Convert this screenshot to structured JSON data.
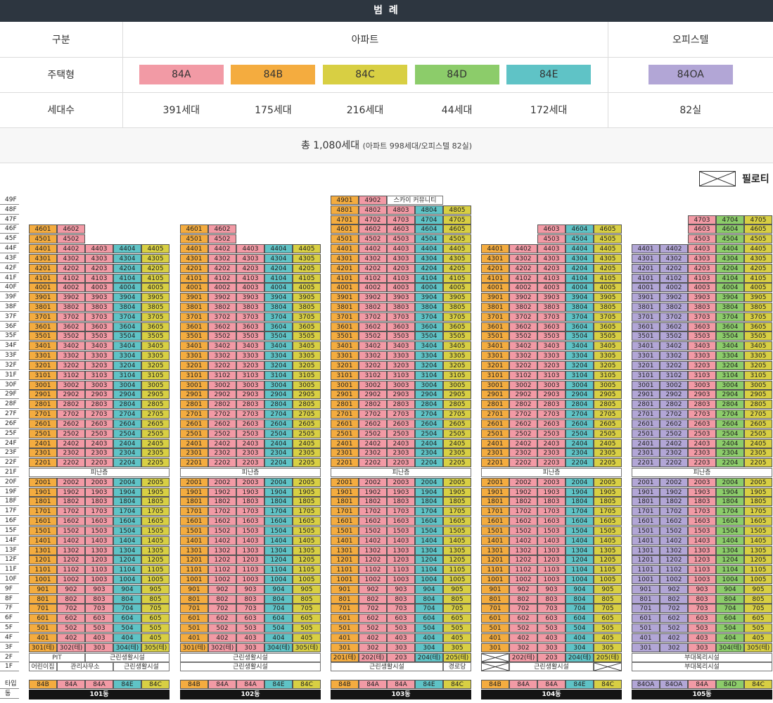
{
  "legend": {
    "title": "범 례",
    "col_label": "구분",
    "apt_header": "아파트",
    "off_header": "오피스텔",
    "type_label": "주택형",
    "count_label": "세대수",
    "apt_types": [
      {
        "name": "84A",
        "color": "#f29aa5",
        "count": "391세대"
      },
      {
        "name": "84B",
        "color": "#f4ac3f",
        "count": "175세대"
      },
      {
        "name": "84C",
        "color": "#d8cf43",
        "count": "216세대"
      },
      {
        "name": "84D",
        "color": "#8ccc6a",
        "count": "44세대"
      },
      {
        "name": "84E",
        "color": "#5fc3c6",
        "count": "172세대"
      }
    ],
    "off_type": {
      "name": "84OA",
      "color": "#b2a6d6",
      "count": "82실"
    },
    "total_main": "총 1,080세대",
    "total_sub": "(아파트 998세대/오피스텔 82실)",
    "piloti_label": "필로티"
  },
  "floors": [
    "49F",
    "48F",
    "47F",
    "46F",
    "45F",
    "44F",
    "43F",
    "42F",
    "41F",
    "40F",
    "39F",
    "38F",
    "37F",
    "36F",
    "35F",
    "34F",
    "33F",
    "32F",
    "31F",
    "30F",
    "29F",
    "28F",
    "27F",
    "26F",
    "25F",
    "24F",
    "23F",
    "22F",
    "21F",
    "20F",
    "19F",
    "18F",
    "17F",
    "16F",
    "15F",
    "14F",
    "13F",
    "12F",
    "11F",
    "10F",
    "9F",
    "8F",
    "7F",
    "6F",
    "5F",
    "4F",
    "3F",
    "2F",
    "1F"
  ],
  "row_labels": {
    "type": "타입",
    "building": "동"
  },
  "refuge_label": "피난층",
  "sky_label": "스카이 커뮤니티",
  "buildings": [
    {
      "name": "101동",
      "types": [
        "84B",
        "84A",
        "84A",
        "84E",
        "84C"
      ],
      "top": 46,
      "colors": [
        "#f4ac3f",
        "#f29aa5",
        "#f29aa5",
        "#5fc3c6",
        "#d8cf43"
      ],
      "row3": [
        "301(테)",
        "302(테)",
        "303",
        "304(테)",
        "305(테)"
      ],
      "row2": [
        {
          "span": 2,
          "text": "PIT"
        },
        {
          "span": 3,
          "text": "근린생활시설"
        }
      ],
      "row1": [
        {
          "span": 1,
          "text": "어린이집"
        },
        {
          "span": 2,
          "text": "관리사무소"
        },
        {
          "span": 2,
          "text": "근린생활시설"
        }
      ]
    },
    {
      "name": "102동",
      "types": [
        "84B",
        "84A",
        "84A",
        "84E",
        "84C"
      ],
      "top": 46,
      "colors": [
        "#f4ac3f",
        "#f29aa5",
        "#f29aa5",
        "#5fc3c6",
        "#d8cf43"
      ],
      "row3": [
        "301(테)",
        "302(테)",
        "303",
        "304(테)",
        "305(테)"
      ],
      "row2": [
        {
          "span": 5,
          "text": "근린생활시설"
        }
      ],
      "row1": [
        {
          "span": 5,
          "text": "근린생활시설"
        }
      ]
    },
    {
      "name": "103동",
      "types": [
        "84B",
        "84A",
        "84A",
        "84E",
        "84C"
      ],
      "top": 49,
      "colors": [
        "#f4ac3f",
        "#f29aa5",
        "#f29aa5",
        "#5fc3c6",
        "#d8cf43"
      ],
      "row3": [
        "301",
        "302",
        "303",
        "304",
        "305"
      ],
      "row2": [
        "201(테)",
        "202(테)",
        "203",
        "204(테)",
        "205(테)"
      ],
      "row1": [
        {
          "span": 4,
          "text": "근린생활시설"
        },
        {
          "span": 1,
          "text": "경로당"
        }
      ]
    },
    {
      "name": "104동",
      "types": [
        "84B",
        "84A",
        "84A",
        "84E",
        "84C"
      ],
      "top": 46,
      "colors": [
        "#f4ac3f",
        "#f29aa5",
        "#f29aa5",
        "#5fc3c6",
        "#d8cf43"
      ],
      "row3": [
        "301",
        "302",
        "303",
        "304",
        "305"
      ],
      "row2": [
        "X",
        "202(테)",
        "203",
        "204(테)",
        "205(테)"
      ],
      "row1": [
        {
          "span": 1,
          "text": "X"
        },
        {
          "span": 3,
          "text": "근린생활시설"
        },
        {
          "span": 1,
          "text": "X"
        }
      ]
    },
    {
      "name": "105동",
      "types": [
        "84OA",
        "84OA",
        "84A",
        "84D",
        "84C"
      ],
      "top": 47,
      "colors": [
        "#b2a6d6",
        "#b2a6d6",
        "#f29aa5",
        "#8ccc6a",
        "#d8cf43"
      ],
      "row3": [
        "301",
        "302",
        "303",
        "304(테)",
        "305(테)"
      ],
      "row2": [
        {
          "span": 5,
          "text": "부대복리시설"
        }
      ],
      "row1": [
        {
          "span": 5,
          "text": "부대복리시설"
        }
      ]
    }
  ]
}
